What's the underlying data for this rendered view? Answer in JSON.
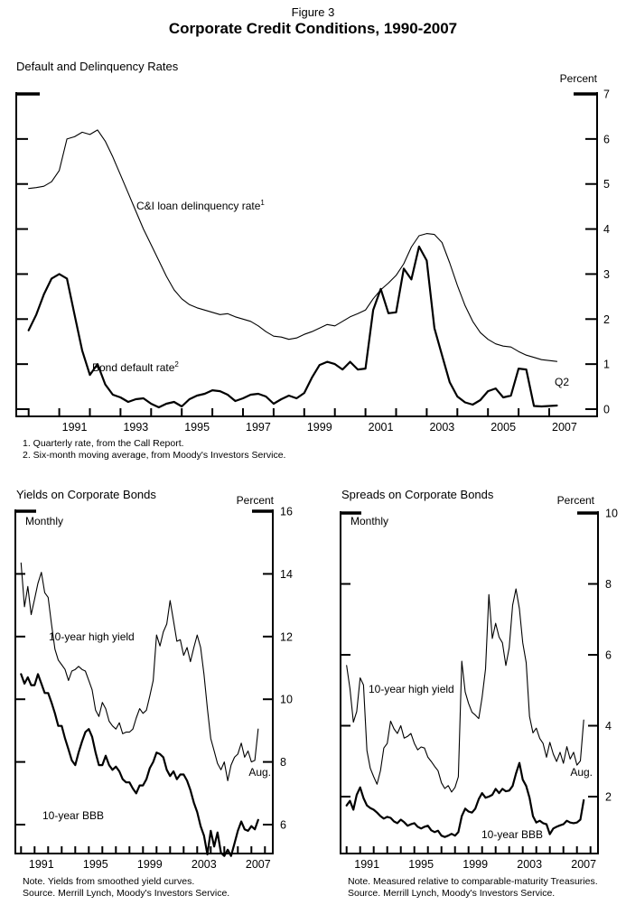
{
  "header": {
    "figure_label": "Figure 3",
    "title": "Corporate Credit Conditions, 1990-2007"
  },
  "chart_data": [
    {
      "id": "default_delinquency",
      "type": "line",
      "title": "Default and Delinquency Rates",
      "unit_label": "Percent",
      "x_start": 1990.0,
      "x_step": 0.25,
      "x_axis": {
        "tick_years_from": 1990,
        "tick_years_to": 2007,
        "label_years": [
          1991,
          1993,
          1995,
          1997,
          1999,
          2001,
          2003,
          2005,
          2007
        ]
      },
      "y_axis": {
        "ticks": [
          0,
          1,
          2,
          3,
          4,
          5,
          6,
          7
        ],
        "top_value": 7,
        "label_side": "right",
        "ylim": [
          0,
          7
        ]
      },
      "legend_position": "inline-annotations",
      "grid": false,
      "series": [
        {
          "name": "C&I loan delinquency rate",
          "footnote_marker": "1",
          "weight": "thin",
          "values": [
            4.9,
            4.92,
            4.95,
            5.05,
            5.3,
            6.0,
            6.05,
            6.15,
            6.1,
            6.2,
            5.95,
            5.6,
            5.2,
            4.8,
            4.4,
            4.0,
            3.65,
            3.3,
            2.95,
            2.65,
            2.45,
            2.32,
            2.25,
            2.2,
            2.15,
            2.1,
            2.12,
            2.05,
            2.0,
            1.95,
            1.85,
            1.72,
            1.62,
            1.6,
            1.55,
            1.58,
            1.66,
            1.72,
            1.8,
            1.88,
            1.85,
            1.95,
            2.05,
            2.12,
            2.2,
            2.45,
            2.65,
            2.8,
            2.97,
            3.23,
            3.6,
            3.85,
            3.9,
            3.88,
            3.7,
            3.25,
            2.75,
            2.3,
            1.95,
            1.7,
            1.55,
            1.45,
            1.4,
            1.38,
            1.28,
            1.2,
            1.15,
            1.1,
            1.08,
            1.06
          ]
        },
        {
          "name": "Bond default rate",
          "footnote_marker": "2",
          "weight": "thick",
          "values": [
            1.75,
            2.1,
            2.55,
            2.9,
            3.0,
            2.9,
            2.1,
            1.3,
            0.76,
            1.0,
            0.55,
            0.32,
            0.26,
            0.16,
            0.22,
            0.24,
            0.12,
            0.04,
            0.12,
            0.16,
            0.06,
            0.22,
            0.3,
            0.34,
            0.42,
            0.4,
            0.32,
            0.18,
            0.24,
            0.32,
            0.34,
            0.28,
            0.12,
            0.22,
            0.3,
            0.24,
            0.36,
            0.7,
            0.98,
            1.05,
            1.0,
            0.88,
            1.05,
            0.88,
            0.9,
            2.2,
            2.67,
            2.13,
            2.15,
            3.12,
            2.88,
            3.61,
            3.3,
            1.8,
            1.2,
            0.6,
            0.28,
            0.15,
            0.1,
            0.2,
            0.4,
            0.46,
            0.26,
            0.3,
            0.9,
            0.88,
            0.07,
            0.06,
            0.07,
            0.08
          ]
        }
      ],
      "annotations": {
        "last_point_label": "Q2"
      },
      "footnotes": [
        "1. Quarterly rate, from the Call Report.",
        "2. Six-month moving average, from Moody's Investors Service."
      ]
    },
    {
      "id": "yields",
      "type": "line",
      "title": "Yields on Corporate Bonds",
      "unit_label": "Percent",
      "frequency_label": "Monthly",
      "x_start": 1990.0,
      "x_step": 0.25,
      "x_axis": {
        "tick_years_from": 1990,
        "tick_years_to": 2008,
        "label_years": [
          1991,
          1995,
          1999,
          2003,
          2007
        ]
      },
      "y_axis": {
        "ticks": [
          6,
          8,
          10,
          12,
          14,
          16
        ],
        "top_value": 16,
        "label_side": "right",
        "ylim": [
          5,
          16
        ]
      },
      "legend_position": "inline-annotations",
      "grid": false,
      "series": [
        {
          "name": "10-year high yield",
          "weight": "thin",
          "values": [
            14.35,
            12.95,
            13.6,
            12.7,
            13.2,
            13.7,
            14.05,
            13.4,
            13.25,
            12.4,
            11.6,
            11.25,
            11.1,
            10.95,
            10.6,
            10.9,
            10.95,
            11.05,
            10.95,
            10.9,
            10.6,
            10.3,
            9.65,
            9.45,
            9.9,
            9.7,
            9.3,
            9.15,
            9.05,
            9.25,
            8.9,
            8.95,
            8.95,
            9.05,
            9.4,
            9.7,
            9.55,
            9.65,
            10.1,
            10.6,
            12.05,
            11.7,
            12.15,
            12.4,
            13.15,
            12.5,
            11.85,
            11.9,
            11.4,
            11.65,
            11.2,
            11.65,
            12.05,
            11.65,
            10.8,
            9.7,
            8.75,
            8.35,
            7.95,
            7.75,
            8.0,
            7.4,
            7.9,
            8.15,
            8.25,
            8.6,
            8.15,
            8.35,
            8.0,
            8.05,
            9.05
          ]
        },
        {
          "name": "10-year BBB",
          "weight": "thick",
          "values": [
            10.8,
            10.5,
            10.7,
            10.45,
            10.45,
            10.8,
            10.5,
            10.2,
            10.2,
            9.9,
            9.55,
            9.15,
            9.15,
            8.75,
            8.4,
            8.05,
            7.9,
            8.3,
            8.65,
            8.95,
            9.05,
            8.8,
            8.3,
            7.9,
            7.9,
            8.2,
            7.9,
            7.75,
            7.85,
            7.7,
            7.45,
            7.35,
            7.35,
            7.15,
            7.0,
            7.25,
            7.25,
            7.45,
            7.8,
            8.0,
            8.3,
            8.25,
            8.15,
            7.75,
            7.55,
            7.7,
            7.45,
            7.6,
            7.6,
            7.4,
            7.1,
            6.7,
            6.4,
            5.95,
            5.65,
            5.05,
            5.8,
            5.3,
            5.75,
            5.1,
            5.0,
            5.2,
            5.0,
            5.4,
            5.8,
            6.1,
            5.85,
            5.8,
            5.95,
            5.85,
            6.15
          ]
        }
      ],
      "annotations": {
        "last_point_label": "Aug."
      },
      "notes": [
        "Note. Yields from smoothed yield curves.",
        "Source. Merrill Lynch, Moody's Investors Service."
      ]
    },
    {
      "id": "spreads",
      "type": "line",
      "title": "Spreads on Corporate Bonds",
      "unit_label": "Percent",
      "frequency_label": "Monthly",
      "x_start": 1990.0,
      "x_step": 0.25,
      "x_axis": {
        "tick_years_from": 1990,
        "tick_years_to": 2008,
        "label_years": [
          1991,
          1995,
          1999,
          2003,
          2007
        ]
      },
      "y_axis": {
        "ticks": [
          2,
          4,
          6,
          8,
          10
        ],
        "top_value": 10,
        "label_side": "right",
        "ylim": [
          0,
          10
        ]
      },
      "legend_position": "inline-annotations",
      "grid": false,
      "series": [
        {
          "name": "10-year high yield",
          "weight": "thin",
          "values": [
            5.7,
            5.05,
            4.1,
            4.4,
            5.35,
            5.15,
            3.3,
            2.8,
            2.56,
            2.35,
            2.73,
            3.37,
            3.5,
            4.13,
            3.91,
            3.78,
            4.0,
            3.65,
            3.7,
            3.78,
            3.5,
            3.32,
            3.4,
            3.37,
            3.11,
            2.99,
            2.85,
            2.73,
            2.39,
            2.23,
            2.31,
            2.13,
            2.26,
            2.56,
            5.82,
            4.95,
            4.63,
            4.38,
            4.3,
            4.2,
            4.8,
            5.6,
            7.7,
            6.46,
            6.89,
            6.5,
            6.34,
            5.7,
            6.2,
            7.4,
            7.86,
            7.3,
            6.34,
            5.78,
            4.26,
            3.8,
            3.93,
            3.64,
            3.5,
            3.11,
            3.53,
            3.2,
            2.99,
            3.25,
            2.94,
            3.41,
            3.06,
            3.25,
            2.89,
            3.01,
            4.16
          ]
        },
        {
          "name": "10-year BBB",
          "weight": "thick",
          "values": [
            1.75,
            1.88,
            1.63,
            2.05,
            2.26,
            1.96,
            1.75,
            1.68,
            1.63,
            1.55,
            1.45,
            1.38,
            1.43,
            1.4,
            1.3,
            1.25,
            1.35,
            1.28,
            1.18,
            1.22,
            1.25,
            1.15,
            1.1,
            1.15,
            1.18,
            1.05,
            1.0,
            1.04,
            0.9,
            0.86,
            0.9,
            0.95,
            0.9,
            1.0,
            1.45,
            1.66,
            1.58,
            1.55,
            1.66,
            1.93,
            2.1,
            1.97,
            2.0,
            2.05,
            2.22,
            2.1,
            2.22,
            2.15,
            2.17,
            2.3,
            2.65,
            2.95,
            2.48,
            2.3,
            1.97,
            1.45,
            1.27,
            1.32,
            1.25,
            1.22,
            0.94,
            1.1,
            1.15,
            1.19,
            1.22,
            1.32,
            1.27,
            1.25,
            1.27,
            1.35,
            1.9
          ]
        }
      ],
      "annotations": {
        "last_point_label": "Aug."
      },
      "notes": [
        "Note. Measured relative to comparable-maturity Treasuries.",
        "Source. Merrill Lynch, Moody's Investors Service."
      ]
    }
  ]
}
